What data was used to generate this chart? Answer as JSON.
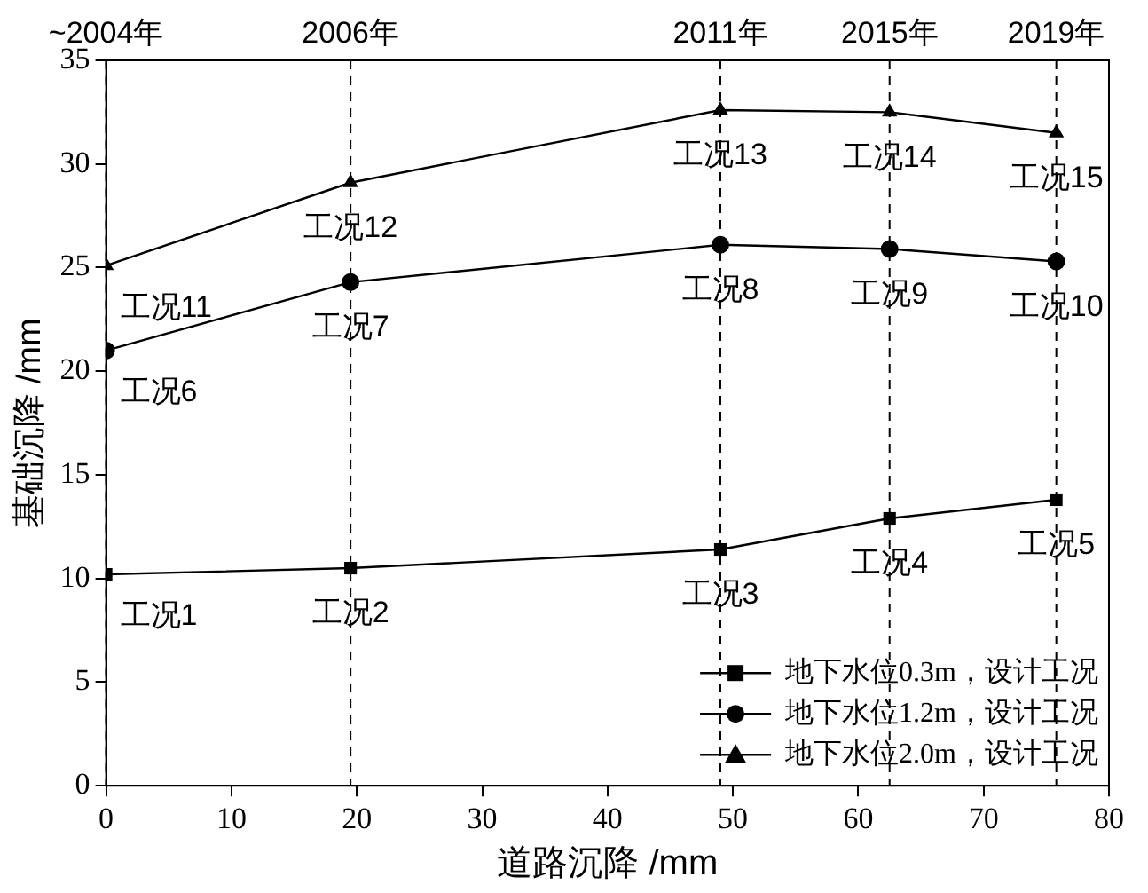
{
  "chart_data": {
    "type": "line",
    "xlabel": "道路沉降 /mm",
    "ylabel": "基础沉降 /mm",
    "x": [
      0,
      19.5,
      49,
      62.5,
      75.8
    ],
    "series": [
      {
        "name": "地下水位0.3m，设计工况",
        "color": "#000000",
        "marker": "square",
        "values": [
          10.2,
          10.5,
          11.4,
          12.9,
          13.8
        ]
      },
      {
        "name": "地下水位1.2m，设计工况",
        "color": "#000000",
        "marker": "circle",
        "values": [
          21.0,
          24.3,
          26.1,
          25.9,
          25.3
        ]
      },
      {
        "name": "地下水位2.0m，设计工况",
        "color": "#000000",
        "marker": "triangle",
        "values": [
          25.1,
          29.1,
          32.6,
          32.5,
          31.5
        ]
      }
    ],
    "xlim": [
      0,
      80
    ],
    "xticks": [
      0,
      10,
      20,
      30,
      40,
      50,
      60,
      70,
      80
    ],
    "ylim": [
      0,
      35
    ],
    "yticks": [
      0,
      5,
      10,
      15,
      20,
      25,
      30,
      35
    ],
    "ref_lines": [
      {
        "axis": "x",
        "value": 0,
        "label": "~2004年",
        "line_style": "dashed"
      },
      {
        "axis": "x",
        "value": 19.5,
        "label": "2006年",
        "line_style": "dashed"
      },
      {
        "axis": "x",
        "value": 49,
        "label": "2011年",
        "line_style": "dashed"
      },
      {
        "axis": "x",
        "value": 62.5,
        "label": "2015年",
        "line_style": "dashed"
      },
      {
        "axis": "x",
        "value": 75.8,
        "label": "2019年",
        "line_style": "dashed"
      }
    ],
    "annotations": [
      {
        "text": "工况1",
        "x": 0,
        "y": 10.2
      },
      {
        "text": "工况2",
        "x": 19.5,
        "y": 10.5
      },
      {
        "text": "工况3",
        "x": 49,
        "y": 11.4
      },
      {
        "text": "工况4",
        "x": 62.5,
        "y": 12.9
      },
      {
        "text": "工况5",
        "x": 75.8,
        "y": 13.8
      },
      {
        "text": "工况6",
        "x": 0,
        "y": 21.0
      },
      {
        "text": "工况7",
        "x": 19.5,
        "y": 24.3
      },
      {
        "text": "工况8",
        "x": 49,
        "y": 26.1
      },
      {
        "text": "工况9",
        "x": 62.5,
        "y": 25.9
      },
      {
        "text": "工况10",
        "x": 75.8,
        "y": 25.3
      },
      {
        "text": "工况11",
        "x": 0,
        "y": 25.1
      },
      {
        "text": "工况12",
        "x": 19.5,
        "y": 29.1
      },
      {
        "text": "工况13",
        "x": 49,
        "y": 32.6
      },
      {
        "text": "工况14",
        "x": 62.5,
        "y": 32.5
      },
      {
        "text": "工况15",
        "x": 75.8,
        "y": 31.5
      }
    ],
    "legend": "bottom right",
    "line_style": "solid",
    "grid": false
  }
}
